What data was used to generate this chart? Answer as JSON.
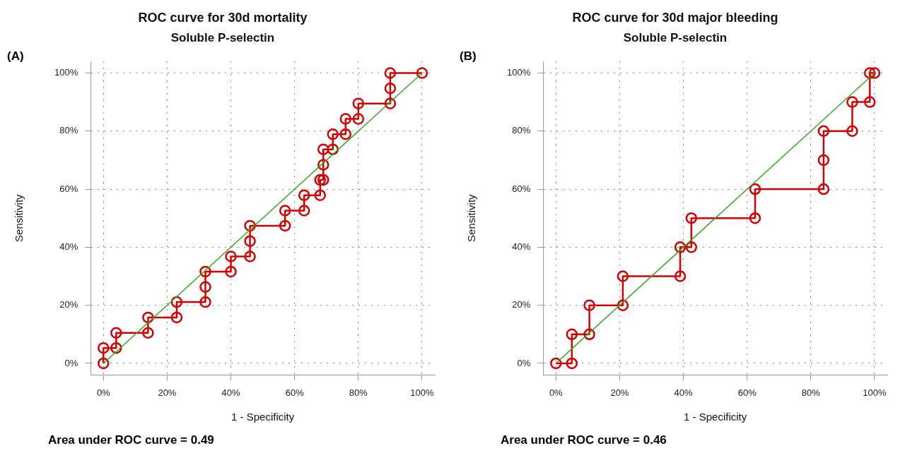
{
  "chart_data": [
    {
      "type": "step",
      "title": "ROC curve for 30d mortality",
      "subtitle": "Soluble P-selectin",
      "xlabel": "1 - Specificity",
      "ylabel": "Sensitivity",
      "annotations": [
        "(A)",
        "Area under ROC curve = 0.49"
      ],
      "xlim": [
        -4,
        104
      ],
      "ylim": [
        -4,
        104
      ],
      "xticks": [
        {
          "value": 0,
          "label": "0%"
        },
        {
          "value": 20,
          "label": "20%"
        },
        {
          "value": 40,
          "label": "40%"
        },
        {
          "value": 60,
          "label": "60%"
        },
        {
          "value": 80,
          "label": "80%"
        },
        {
          "value": 100,
          "label": "100%"
        }
      ],
      "yticks": [
        {
          "value": 0,
          "label": "0%"
        },
        {
          "value": 20,
          "label": "20%"
        },
        {
          "value": 40,
          "label": "40%"
        },
        {
          "value": 60,
          "label": "60%"
        },
        {
          "value": 80,
          "label": "80%"
        },
        {
          "value": 100,
          "label": "100%"
        }
      ],
      "grid": true,
      "legend": false,
      "series": [
        {
          "type": "line",
          "color": "#33aa22",
          "marker": "none",
          "x": [
            0,
            100
          ],
          "values": [
            0,
            100
          ]
        },
        {
          "color": "#d40000",
          "marker": "circle",
          "x": [
            0,
            0,
            4,
            4,
            14,
            14,
            23,
            23,
            32,
            32,
            32,
            40,
            40,
            46,
            46,
            46,
            57,
            57,
            63,
            63,
            68,
            68,
            69,
            69,
            69,
            72,
            72,
            76,
            76,
            80,
            80,
            90,
            90,
            90,
            100
          ],
          "values": [
            0,
            5.3,
            5.3,
            10.5,
            10.5,
            15.8,
            15.8,
            21.1,
            21.1,
            26.3,
            31.6,
            31.6,
            36.8,
            36.8,
            42.1,
            47.4,
            47.4,
            52.6,
            52.6,
            57.9,
            57.9,
            63.2,
            63.2,
            68.4,
            73.7,
            73.7,
            78.9,
            78.9,
            84.2,
            84.2,
            89.5,
            89.5,
            94.7,
            100,
            100
          ]
        }
      ]
    },
    {
      "type": "step",
      "title": "ROC curve for 30d major bleeding",
      "subtitle": "Soluble P-selectin",
      "xlabel": "1 - Specificity",
      "ylabel": "Sensitivity",
      "annotations": [
        "(B)",
        "Area under ROC curve = 0.46"
      ],
      "xlim": [
        -4,
        104
      ],
      "ylim": [
        -4,
        104
      ],
      "xticks": [
        {
          "value": 0,
          "label": "0%"
        },
        {
          "value": 20,
          "label": "20%"
        },
        {
          "value": 40,
          "label": "40%"
        },
        {
          "value": 60,
          "label": "60%"
        },
        {
          "value": 80,
          "label": "80%"
        },
        {
          "value": 100,
          "label": "100%"
        }
      ],
      "yticks": [
        {
          "value": 0,
          "label": "0%"
        },
        {
          "value": 20,
          "label": "20%"
        },
        {
          "value": 40,
          "label": "40%"
        },
        {
          "value": 60,
          "label": "60%"
        },
        {
          "value": 80,
          "label": "80%"
        },
        {
          "value": 100,
          "label": "100%"
        }
      ],
      "grid": true,
      "legend": false,
      "series": [
        {
          "type": "line",
          "color": "#33aa22",
          "marker": "none",
          "x": [
            0,
            100
          ],
          "values": [
            0,
            100
          ]
        },
        {
          "color": "#d40000",
          "marker": "circle",
          "x": [
            0,
            5,
            5,
            10.5,
            10.5,
            21,
            21,
            39,
            39,
            42.5,
            42.5,
            62.5,
            62.5,
            84,
            84,
            84,
            93,
            93,
            98.5,
            98.5,
            100
          ],
          "values": [
            0,
            0,
            10,
            10,
            20,
            20,
            30,
            30,
            40,
            40,
            50,
            50,
            60,
            60,
            70,
            80,
            80,
            90,
            90,
            100,
            100
          ]
        }
      ]
    }
  ]
}
